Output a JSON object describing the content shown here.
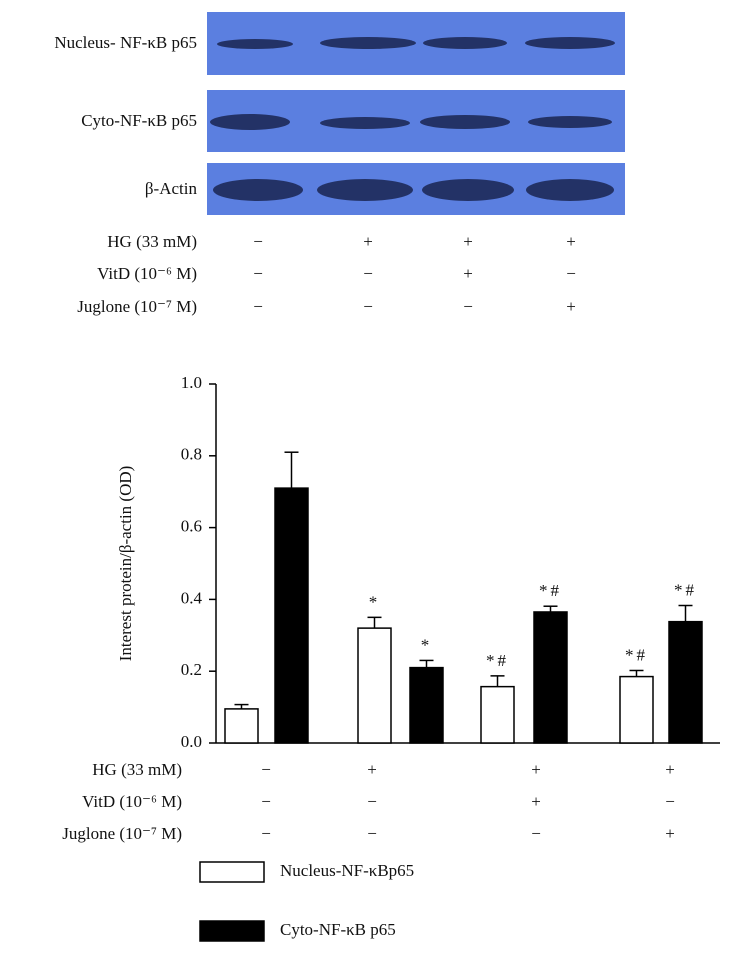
{
  "blot": {
    "rows": [
      {
        "label": "Nucleus- NF-κB p65"
      },
      {
        "label": "Cyto-NF-κB p65"
      },
      {
        "label": "β-Actin"
      }
    ]
  },
  "conditions": [
    {
      "label": "HG (33 mM)",
      "signs": [
        "−",
        "+",
        "+",
        "+"
      ]
    },
    {
      "label": "VitD (10⁻⁶ M)",
      "signs": [
        "−",
        "−",
        "+",
        "−"
      ]
    },
    {
      "label": "Juglone (10⁻⁷ M)",
      "signs": [
        "−",
        "−",
        "−",
        "+"
      ]
    }
  ],
  "chart_data": {
    "type": "bar",
    "ylabel": "Interest protein/β-actin (OD)",
    "ylim": [
      0,
      1
    ],
    "yticks": [
      {
        "value": 0,
        "label": "0.0"
      },
      {
        "value": 0.2,
        "label": "0.2"
      },
      {
        "value": 0.4,
        "label": "0.4"
      },
      {
        "value": 0.6,
        "label": "0.6"
      },
      {
        "value": 0.8,
        "label": "0.8"
      },
      {
        "value": 1,
        "label": "1.0"
      }
    ],
    "series": [
      {
        "name": "Nucleus-NF-κBp65",
        "color": "#ffffff",
        "values": [
          0.095,
          0.32,
          0.157,
          0.185
        ],
        "errors": [
          0.012,
          0.03,
          0.03,
          0.017
        ],
        "annotations": [
          null,
          "*",
          "*#",
          "*#"
        ]
      },
      {
        "name": "Cyto-NF-κB p65",
        "color": "#000000",
        "values": [
          0.71,
          0.21,
          0.365,
          0.338
        ],
        "errors": [
          0.1,
          0.02,
          0.016,
          0.045
        ],
        "annotations": [
          null,
          "*",
          "*#",
          "*#"
        ]
      }
    ],
    "legend": "bottom-left"
  }
}
